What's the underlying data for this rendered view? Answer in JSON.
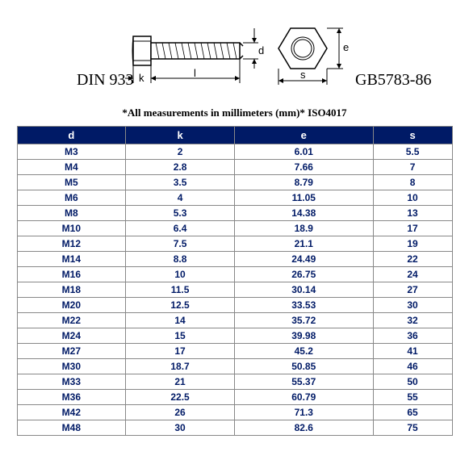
{
  "standards": {
    "left": "DIN 933",
    "right": "GB5783-86"
  },
  "dimensions": {
    "k": "k",
    "l": "l",
    "d": "d",
    "s": "s",
    "e": "e"
  },
  "caption": "*All measurements in millimeters (mm)* ISO4017",
  "table": {
    "columns": [
      "d",
      "k",
      "e",
      "s"
    ],
    "rows": [
      [
        "M3",
        "2",
        "6.01",
        "5.5"
      ],
      [
        "M4",
        "2.8",
        "7.66",
        "7"
      ],
      [
        "M5",
        "3.5",
        "8.79",
        "8"
      ],
      [
        "M6",
        "4",
        "11.05",
        "10"
      ],
      [
        "M8",
        "5.3",
        "14.38",
        "13"
      ],
      [
        "M10",
        "6.4",
        "18.9",
        "17"
      ],
      [
        "M12",
        "7.5",
        "21.1",
        "19"
      ],
      [
        "M14",
        "8.8",
        "24.49",
        "22"
      ],
      [
        "M16",
        "10",
        "26.75",
        "24"
      ],
      [
        "M18",
        "11.5",
        "30.14",
        "27"
      ],
      [
        "M20",
        "12.5",
        "33.53",
        "30"
      ],
      [
        "M22",
        "14",
        "35.72",
        "32"
      ],
      [
        "M24",
        "15",
        "39.98",
        "36"
      ],
      [
        "M27",
        "17",
        "45.2",
        "41"
      ],
      [
        "M30",
        "18.7",
        "50.85",
        "46"
      ],
      [
        "M33",
        "21",
        "55.37",
        "50"
      ],
      [
        "M36",
        "22.5",
        "60.79",
        "55"
      ],
      [
        "M42",
        "26",
        "71.3",
        "65"
      ],
      [
        "M48",
        "30",
        "82.6",
        "75"
      ]
    ],
    "header_bg": "#001a66",
    "header_fg": "#ffffff",
    "cell_fg": "#001a66",
    "border_color": "#888888"
  }
}
